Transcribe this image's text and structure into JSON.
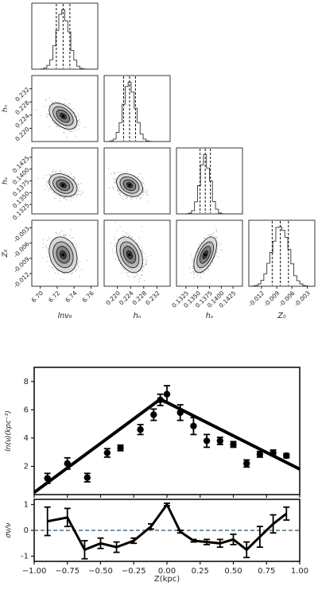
{
  "corner": {
    "params": [
      "lnν₀",
      "hₙ",
      "hₛ",
      "Z₀"
    ],
    "ranges": [
      [
        6.69,
        6.768
      ],
      [
        0.216,
        0.236
      ],
      [
        0.1305,
        0.1445
      ],
      [
        -0.0145,
        -0.0015
      ]
    ],
    "ticks": [
      {
        "values": [
          6.7,
          6.72,
          6.74,
          6.76
        ],
        "labels": [
          "6.70",
          "6.72",
          "6.74",
          "6.76"
        ]
      },
      {
        "values": [
          0.22,
          0.224,
          0.228,
          0.232
        ],
        "labels": [
          "0.220",
          "0.224",
          "0.228",
          "0.232"
        ]
      },
      {
        "values": [
          0.1325,
          0.135,
          0.1375,
          0.14,
          0.1425
        ],
        "labels": [
          "0.1325",
          "0.1350",
          "0.1375",
          "0.1400",
          "0.1425"
        ]
      },
      {
        "values": [
          -0.012,
          -0.009,
          -0.006,
          -0.003
        ],
        "labels": [
          "-0.012",
          "-0.009",
          "-0.006",
          "-0.003"
        ]
      }
    ],
    "medians": [
      6.727,
      0.2237,
      0.1366,
      -0.0083
    ],
    "sigmas": [
      0.0075,
      0.0018,
      0.0011,
      0.0016
    ],
    "quantile_lines": [
      [
        6.719,
        6.727,
        6.735
      ],
      [
        0.2219,
        0.2237,
        0.2255
      ],
      [
        0.1355,
        0.1366,
        0.1377
      ],
      [
        -0.0099,
        -0.0083,
        -0.0067
      ]
    ],
    "correlations": {
      "1-0": -0.45,
      "2-0": -0.3,
      "2-1": -0.3,
      "3-0": -0.2,
      "3-1": -0.35,
      "3-2": 0.55
    }
  },
  "chart_data": [
    {
      "type": "scatter",
      "title": "",
      "xlabel": "",
      "ylabel": "ln(ν)(kpc⁻³)",
      "xlim": [
        -1.0,
        1.0
      ],
      "ylim": [
        0,
        9
      ],
      "yticks": [
        2,
        4,
        6,
        8
      ],
      "points": [
        {
          "x": -0.9,
          "y": 1.15,
          "err": 0.35
        },
        {
          "x": -0.75,
          "y": 2.2,
          "err": 0.4
        },
        {
          "x": -0.6,
          "y": 1.2,
          "err": 0.3
        },
        {
          "x": -0.45,
          "y": 2.95,
          "err": 0.3
        },
        {
          "x": -0.35,
          "y": 3.3,
          "err": 0.2
        },
        {
          "x": -0.2,
          "y": 4.6,
          "err": 0.35
        },
        {
          "x": -0.1,
          "y": 5.65,
          "err": 0.4
        },
        {
          "x": -0.05,
          "y": 6.7,
          "err": 0.4
        },
        {
          "x": 0.0,
          "y": 7.1,
          "err": 0.6
        },
        {
          "x": 0.1,
          "y": 5.8,
          "err": 0.55
        },
        {
          "x": 0.2,
          "y": 4.85,
          "err": 0.6
        },
        {
          "x": 0.3,
          "y": 3.8,
          "err": 0.45
        },
        {
          "x": 0.4,
          "y": 3.8,
          "err": 0.25
        },
        {
          "x": 0.5,
          "y": 3.55,
          "err": 0.2
        },
        {
          "x": 0.6,
          "y": 2.2,
          "err": 0.25
        },
        {
          "x": 0.7,
          "y": 2.85,
          "err": 0.2
        },
        {
          "x": 0.8,
          "y": 2.95,
          "err": 0.2
        },
        {
          "x": 0.9,
          "y": 2.75,
          "err": 0.15
        }
      ],
      "model": {
        "x": [
          -1.0,
          -0.05,
          1.0
        ],
        "y": [
          0.15,
          6.75,
          1.8
        ]
      }
    },
    {
      "type": "line",
      "title": "",
      "xlabel": "Z(kpc)",
      "ylabel": "σν/ν",
      "xlim": [
        -1.0,
        1.0
      ],
      "ylim": [
        -1.2,
        1.2
      ],
      "yticks": [
        -1,
        0,
        1
      ],
      "xticks": [
        -1.0,
        -0.75,
        -0.5,
        -0.25,
        0.0,
        0.25,
        0.5,
        0.75,
        1.0
      ],
      "xtick_labels": [
        "−1.00",
        "−0.75",
        "−0.50",
        "−0.25",
        "0.00",
        "0.25",
        "0.50",
        "0.75",
        "1.00"
      ],
      "reference_line": 0,
      "x": [
        -0.9,
        -0.75,
        -0.62,
        -0.5,
        -0.38,
        -0.25,
        -0.12,
        0.0,
        0.1,
        0.2,
        0.3,
        0.4,
        0.5,
        0.6,
        0.7,
        0.8,
        0.9
      ],
      "y": [
        0.35,
        0.5,
        -0.75,
        -0.5,
        -0.65,
        -0.4,
        0.15,
        1.0,
        -0.05,
        -0.4,
        -0.45,
        -0.5,
        -0.35,
        -0.75,
        -0.25,
        0.25,
        0.65
      ],
      "err": [
        0.55,
        0.35,
        0.35,
        0.2,
        0.2,
        0.1,
        0.1,
        0.05,
        0.05,
        0.05,
        0.1,
        0.15,
        0.2,
        0.3,
        0.4,
        0.35,
        0.25
      ]
    }
  ]
}
